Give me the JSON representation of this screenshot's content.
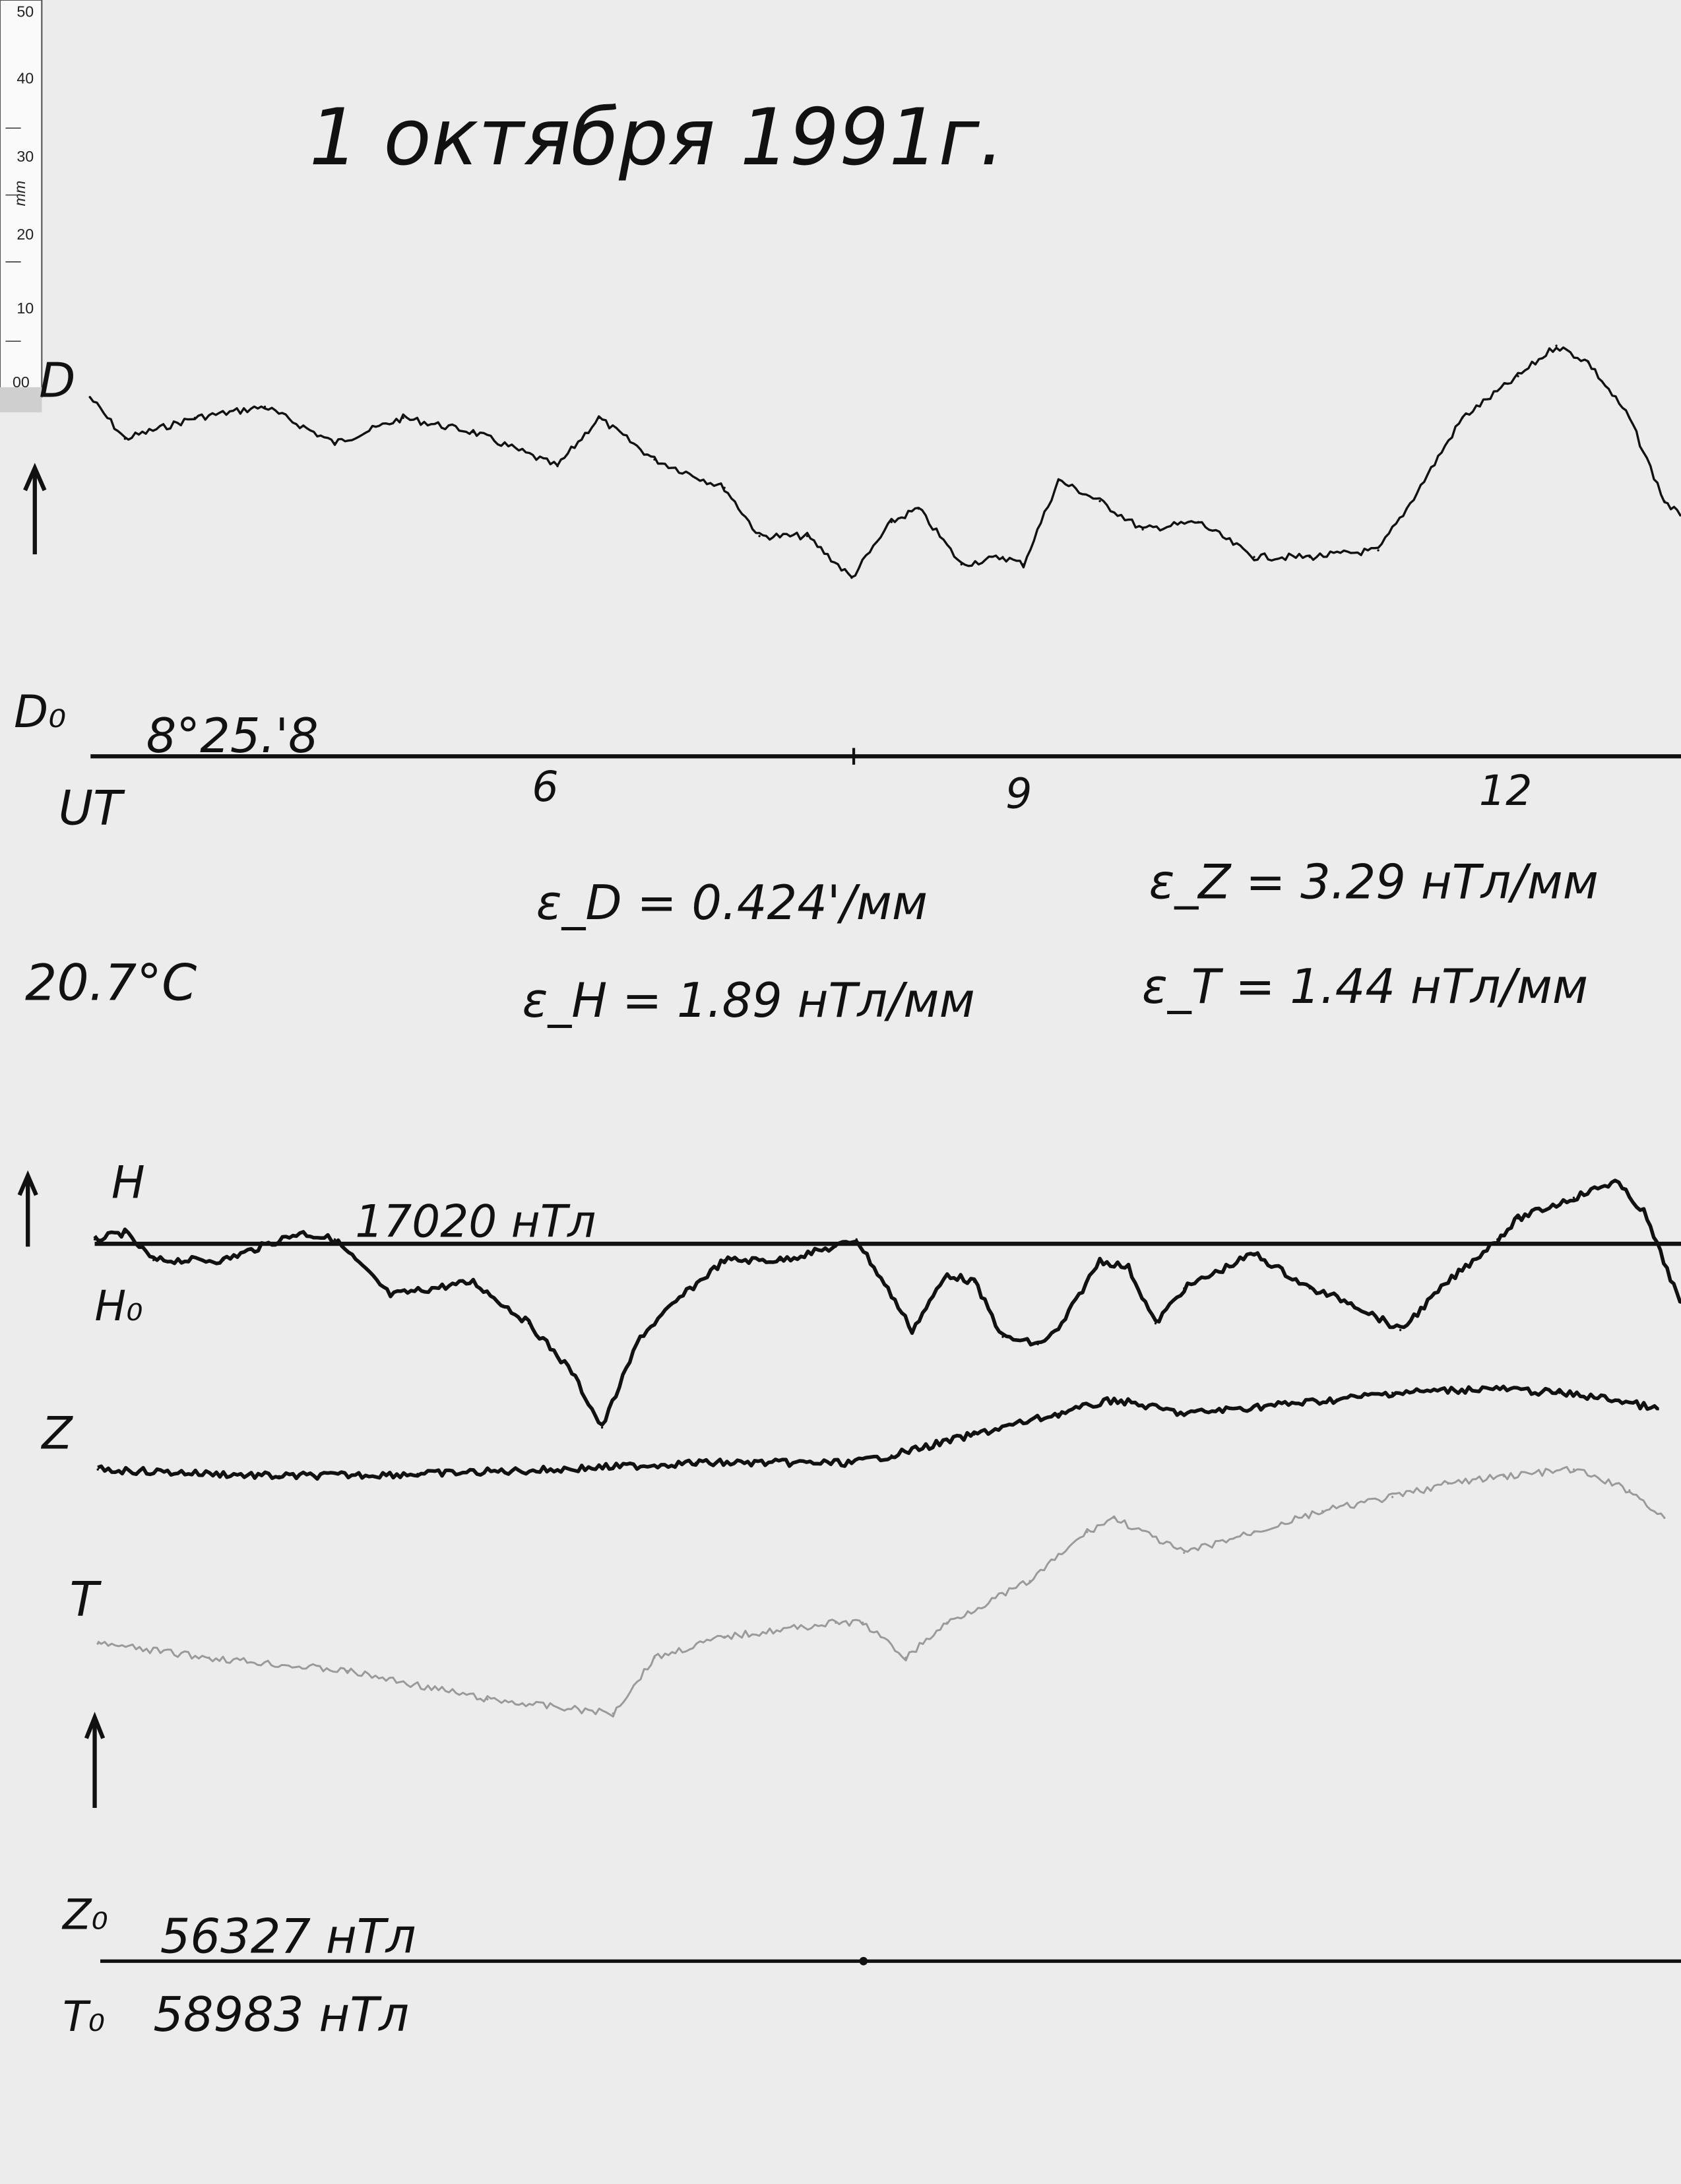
{
  "title": "1 октября 1991г.",
  "ruler": {
    "unit": "mm",
    "labels": [
      "50",
      "40",
      "30",
      "20",
      "10",
      "00"
    ]
  },
  "labels": {
    "d": "D",
    "d0": "D₀",
    "d0_value": "8°25.'8",
    "ut": "UT",
    "temperature": "20.7°C",
    "h": "H",
    "h0": "H₀",
    "h0_value": "17020 нТл",
    "z": "Z",
    "t": "T",
    "z0": "Z₀",
    "z0_value": "56327 нТл",
    "t0": "T₀",
    "t0_value": "58983 нТл"
  },
  "scales": {
    "eps_d": "ε_D = 0.424'/мм",
    "eps_h": "ε_H = 1.89 нТл/мм",
    "eps_z": "ε_Z = 3.29 нТл/мм",
    "eps_t": "ε_T = 1.44 нТл/мм"
  },
  "colors": {
    "ink": "#111111",
    "t_trace": "#9a9a9a",
    "paper": "#ececec"
  },
  "chart_data": {
    "type": "line",
    "title": "1 октября 1991г.",
    "xlabel": "UT",
    "x_ticks": [
      "6",
      "9",
      "12"
    ],
    "x_tick_values": [
      6,
      9,
      12
    ],
    "xlim": [
      3.15,
      13.15
    ],
    "ylabel_unit": "mm",
    "grid": false,
    "series": [
      {
        "name": "D",
        "baseline": "8°25.'8",
        "color": "#111111",
        "points": [
          [
            3.15,
            48.3
          ],
          [
            3.37,
            42.7
          ],
          [
            3.81,
            45.5
          ],
          [
            4.25,
            47.0
          ],
          [
            4.69,
            42.1
          ],
          [
            5.12,
            45.5
          ],
          [
            5.56,
            43.6
          ],
          [
            6.09,
            39.0
          ],
          [
            6.35,
            45.5
          ],
          [
            6.7,
            39.9
          ],
          [
            7.14,
            36.1
          ],
          [
            7.36,
            29.6
          ],
          [
            7.66,
            29.6
          ],
          [
            7.94,
            24.0
          ],
          [
            8.19,
            31.5
          ],
          [
            8.36,
            33.3
          ],
          [
            8.63,
            25.8
          ],
          [
            8.89,
            26.8
          ],
          [
            9.02,
            25.8
          ],
          [
            9.24,
            37.1
          ],
          [
            9.5,
            34.3
          ],
          [
            9.77,
            30.5
          ],
          [
            10.12,
            31.5
          ],
          [
            10.47,
            26.8
          ],
          [
            10.82,
            26.8
          ],
          [
            11.25,
            27.7
          ],
          [
            11.43,
            33.3
          ],
          [
            11.78,
            45.5
          ],
          [
            12.13,
            51.1
          ],
          [
            12.37,
            55.2
          ],
          [
            12.57,
            53.0
          ],
          [
            12.83,
            45.5
          ],
          [
            13.05,
            34.3
          ],
          [
            13.15,
            32.4
          ]
        ]
      },
      {
        "name": "H",
        "baseline": "17020 нТл",
        "color": "#111111",
        "points": [
          [
            3.18,
            0.6
          ],
          [
            3.37,
            1.5
          ],
          [
            3.55,
            -2.2
          ],
          [
            3.99,
            -2.2
          ],
          [
            4.47,
            1.5
          ],
          [
            4.69,
            0.6
          ],
          [
            5.04,
            -6.9
          ],
          [
            5.56,
            -5.1
          ],
          [
            5.91,
            -10.7
          ],
          [
            6.18,
            -17.2
          ],
          [
            6.37,
            -24.7
          ],
          [
            6.61,
            -12.5
          ],
          [
            6.88,
            -6.9
          ],
          [
            7.14,
            -2.2
          ],
          [
            7.49,
            -2.2
          ],
          [
            7.84,
            -0.4
          ],
          [
            7.97,
            0.6
          ],
          [
            8.19,
            -6.9
          ],
          [
            8.32,
            -11.6
          ],
          [
            8.54,
            -4.1
          ],
          [
            8.71,
            -5.1
          ],
          [
            8.89,
            -12.5
          ],
          [
            9.11,
            -13.5
          ],
          [
            9.24,
            -11.6
          ],
          [
            9.5,
            -2.2
          ],
          [
            9.68,
            -3.2
          ],
          [
            9.85,
            -10.7
          ],
          [
            10.03,
            -6.0
          ],
          [
            10.47,
            -1.3
          ],
          [
            10.82,
            -6.0
          ],
          [
            11.08,
            -7.9
          ],
          [
            11.39,
            -11.6
          ],
          [
            11.69,
            -5.1
          ],
          [
            12.0,
            0.6
          ],
          [
            12.13,
            3.4
          ],
          [
            12.48,
            6.2
          ],
          [
            12.74,
            8.4
          ],
          [
            12.92,
            4.3
          ],
          [
            13.15,
            -7.9
          ]
        ]
      },
      {
        "name": "Z",
        "baseline": "56327 нТл",
        "color": "#111111",
        "points": [
          [
            3.2,
            66.1
          ],
          [
            4.34,
            65.2
          ],
          [
            5.21,
            65.5
          ],
          [
            6.09,
            66.1
          ],
          [
            6.96,
            67.0
          ],
          [
            7.94,
            67.0
          ],
          [
            8.19,
            68.0
          ],
          [
            8.71,
            70.8
          ],
          [
            9.24,
            73.6
          ],
          [
            9.59,
            75.5
          ],
          [
            10.03,
            73.6
          ],
          [
            10.47,
            74.5
          ],
          [
            10.99,
            75.5
          ],
          [
            11.34,
            76.4
          ],
          [
            11.95,
            77.0
          ],
          [
            12.39,
            76.4
          ],
          [
            12.74,
            75.5
          ],
          [
            13.01,
            74.2
          ]
        ]
      },
      {
        "name": "T",
        "baseline": "58983 нТл",
        "color": "#9a9a9a",
        "points": [
          [
            3.2,
            42.7
          ],
          [
            3.9,
            40.8
          ],
          [
            4.77,
            39.0
          ],
          [
            5.65,
            35.2
          ],
          [
            6.44,
            33.3
          ],
          [
            6.7,
            40.8
          ],
          [
            7.14,
            43.6
          ],
          [
            7.84,
            45.5
          ],
          [
            8.01,
            45.5
          ],
          [
            8.28,
            40.8
          ],
          [
            8.54,
            45.5
          ],
          [
            9.06,
            51.1
          ],
          [
            9.42,
            57.7
          ],
          [
            9.59,
            59.6
          ],
          [
            10.03,
            54.9
          ],
          [
            10.47,
            57.7
          ],
          [
            10.9,
            60.5
          ],
          [
            11.34,
            62.4
          ],
          [
            11.69,
            64.2
          ],
          [
            12.04,
            65.2
          ],
          [
            12.48,
            66.1
          ],
          [
            12.83,
            63.3
          ],
          [
            13.05,
            59.6
          ]
        ]
      }
    ]
  }
}
